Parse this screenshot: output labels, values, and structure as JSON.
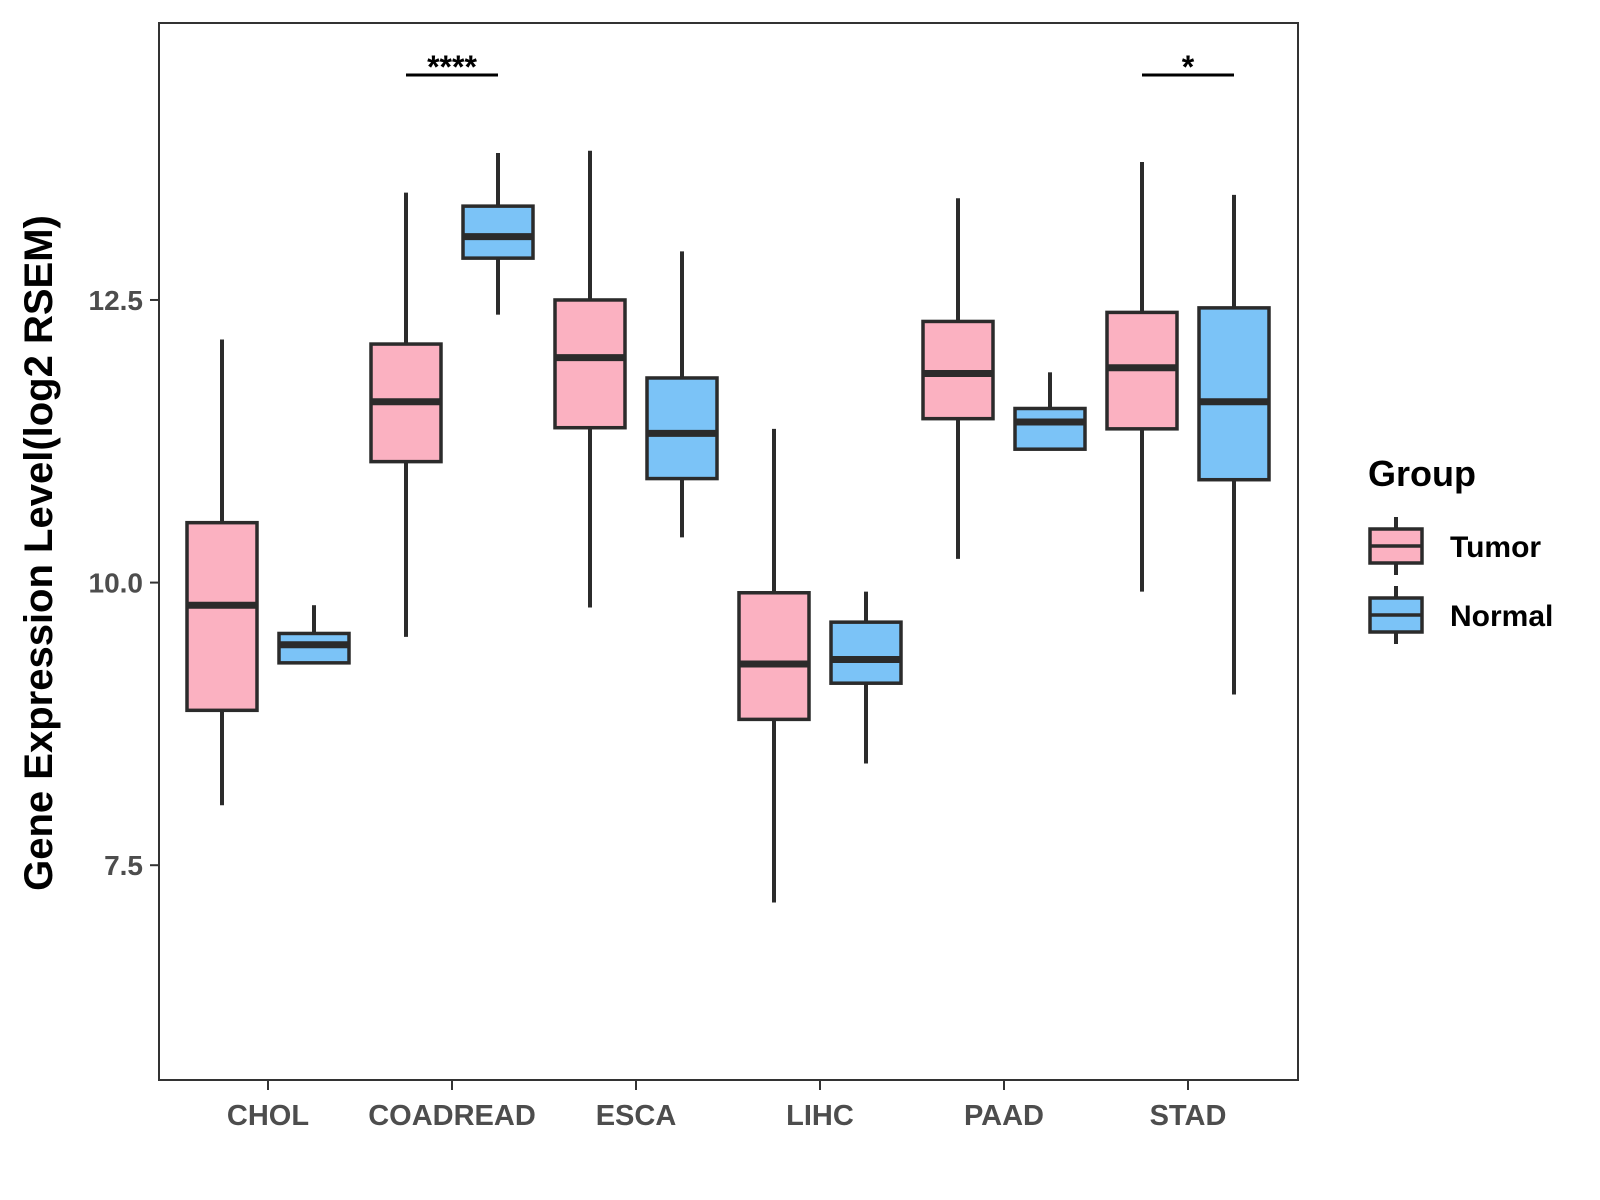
{
  "chart_data": {
    "type": "boxplot",
    "title": "",
    "xlabel": "",
    "ylabel": "Gene Expression Level(log2 RSEM)",
    "ylim": [
      5.6,
      14.95
    ],
    "yticks": [
      7.5,
      10.0,
      12.5
    ],
    "ytick_labels": [
      "7.5",
      "10.0",
      "12.5"
    ],
    "categories": [
      "CHOL",
      "COADREAD",
      "ESCA",
      "LIHC",
      "PAAD",
      "STAD"
    ],
    "legend": {
      "title": "Group",
      "position": "right"
    },
    "series": [
      {
        "name": "Tumor",
        "color": "#fbb1c1",
        "boxes": [
          {
            "category": "CHOL",
            "lower_whisker": 8.03,
            "q1": 8.87,
            "median": 9.8,
            "q3": 10.53,
            "upper_whisker": 12.15
          },
          {
            "category": "COADREAD",
            "lower_whisker": 9.52,
            "q1": 11.07,
            "median": 11.6,
            "q3": 12.11,
            "upper_whisker": 13.45
          },
          {
            "category": "ESCA",
            "lower_whisker": 9.78,
            "q1": 11.37,
            "median": 11.99,
            "q3": 12.5,
            "upper_whisker": 13.82
          },
          {
            "category": "LIHC",
            "lower_whisker": 7.17,
            "q1": 8.79,
            "median": 9.28,
            "q3": 9.91,
            "upper_whisker": 11.36
          },
          {
            "category": "PAAD",
            "lower_whisker": 10.21,
            "q1": 11.45,
            "median": 11.85,
            "q3": 12.31,
            "upper_whisker": 13.4
          },
          {
            "category": "STAD",
            "lower_whisker": 9.92,
            "q1": 11.36,
            "median": 11.9,
            "q3": 12.39,
            "upper_whisker": 13.72
          }
        ]
      },
      {
        "name": "Normal",
        "color": "#7bc3f7",
        "boxes": [
          {
            "category": "CHOL",
            "lower_whisker": 9.29,
            "q1": 9.29,
            "median": 9.45,
            "q3": 9.55,
            "upper_whisker": 9.8
          },
          {
            "category": "COADREAD",
            "lower_whisker": 12.37,
            "q1": 12.87,
            "median": 13.06,
            "q3": 13.33,
            "upper_whisker": 13.8
          },
          {
            "category": "ESCA",
            "lower_whisker": 10.4,
            "q1": 10.92,
            "median": 11.32,
            "q3": 11.81,
            "upper_whisker": 12.93
          },
          {
            "category": "LIHC",
            "lower_whisker": 8.4,
            "q1": 9.11,
            "median": 9.32,
            "q3": 9.65,
            "upper_whisker": 9.92
          },
          {
            "category": "PAAD",
            "lower_whisker": 11.18,
            "q1": 11.18,
            "median": 11.42,
            "q3": 11.54,
            "upper_whisker": 11.86
          },
          {
            "category": "STAD",
            "lower_whisker": 9.01,
            "q1": 10.91,
            "median": 11.6,
            "q3": 12.43,
            "upper_whisker": 13.43
          }
        ]
      }
    ],
    "significance": [
      {
        "category": "COADREAD",
        "label": "****"
      },
      {
        "category": "STAD",
        "label": "*"
      }
    ]
  }
}
